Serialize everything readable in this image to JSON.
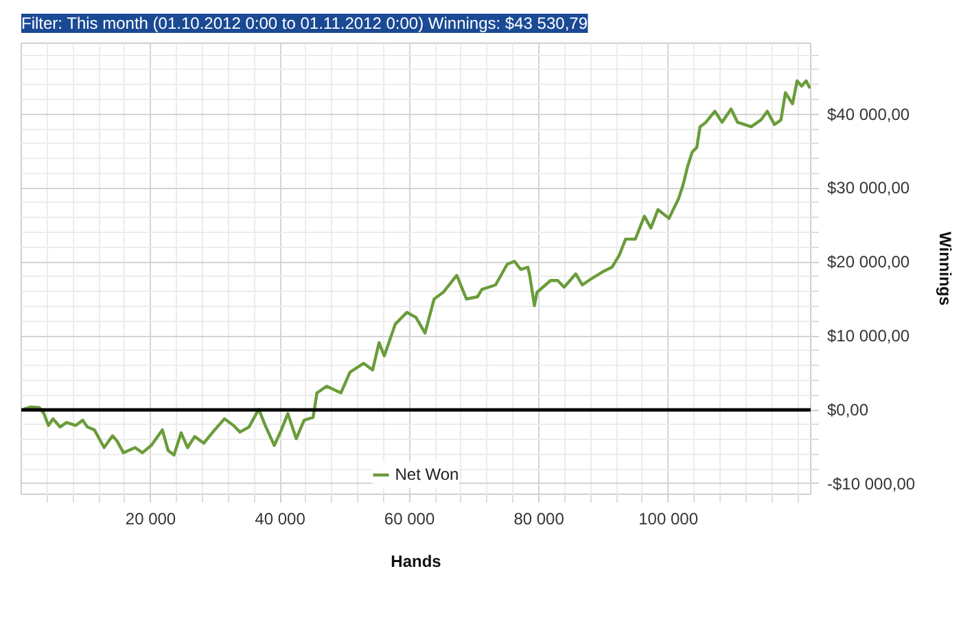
{
  "chart_data": {
    "type": "line",
    "title": "Filter: This month (01.10.2012 0:00 to 01.11.2012 0:00) Winnings: $43 530,79",
    "xlabel": "Hands",
    "ylabel": "Winnings",
    "xlim": [
      0,
      122000
    ],
    "ylim": [
      -11400,
      49600
    ],
    "xticks": [
      {
        "value": 4000,
        "label": null
      },
      {
        "value": 8000,
        "label": null
      },
      {
        "value": 12000,
        "label": null
      },
      {
        "value": 16000,
        "label": null
      },
      {
        "value": 20000,
        "label": "20 000"
      },
      {
        "value": 24000,
        "label": null
      },
      {
        "value": 28000,
        "label": null
      },
      {
        "value": 32000,
        "label": null
      },
      {
        "value": 36000,
        "label": null
      },
      {
        "value": 40000,
        "label": "40 000"
      },
      {
        "value": 44000,
        "label": null
      },
      {
        "value": 48000,
        "label": null
      },
      {
        "value": 52000,
        "label": null
      },
      {
        "value": 56000,
        "label": null
      },
      {
        "value": 60000,
        "label": "60 000"
      },
      {
        "value": 64000,
        "label": null
      },
      {
        "value": 68000,
        "label": null
      },
      {
        "value": 72000,
        "label": null
      },
      {
        "value": 76000,
        "label": null
      },
      {
        "value": 80000,
        "label": "80 000"
      },
      {
        "value": 84000,
        "label": null
      },
      {
        "value": 88000,
        "label": null
      },
      {
        "value": 92000,
        "label": null
      },
      {
        "value": 96000,
        "label": null
      },
      {
        "value": 100000,
        "label": "100 000"
      },
      {
        "value": 104000,
        "label": null
      },
      {
        "value": 108000,
        "label": null
      },
      {
        "value": 112000,
        "label": null
      },
      {
        "value": 116000,
        "label": null
      },
      {
        "value": 120000,
        "label": null
      }
    ],
    "yticks": [
      {
        "value": -10000,
        "label": "-$10 000,00"
      },
      {
        "value": -8000,
        "label": null
      },
      {
        "value": -6000,
        "label": null
      },
      {
        "value": -4000,
        "label": null
      },
      {
        "value": -2000,
        "label": null
      },
      {
        "value": 0,
        "label": "$0,00"
      },
      {
        "value": 2000,
        "label": null
      },
      {
        "value": 4000,
        "label": null
      },
      {
        "value": 6000,
        "label": null
      },
      {
        "value": 8000,
        "label": null
      },
      {
        "value": 10000,
        "label": "$10 000,00"
      },
      {
        "value": 12000,
        "label": null
      },
      {
        "value": 14000,
        "label": null
      },
      {
        "value": 16000,
        "label": null
      },
      {
        "value": 18000,
        "label": null
      },
      {
        "value": 20000,
        "label": "$20 000,00"
      },
      {
        "value": 22000,
        "label": null
      },
      {
        "value": 24000,
        "label": null
      },
      {
        "value": 26000,
        "label": null
      },
      {
        "value": 28000,
        "label": null
      },
      {
        "value": 30000,
        "label": "$30 000,00"
      },
      {
        "value": 32000,
        "label": null
      },
      {
        "value": 34000,
        "label": null
      },
      {
        "value": 36000,
        "label": null
      },
      {
        "value": 38000,
        "label": null
      },
      {
        "value": 40000,
        "label": "$40 000,00"
      },
      {
        "value": 42000,
        "label": null
      },
      {
        "value": 44000,
        "label": null
      },
      {
        "value": 46000,
        "label": null
      },
      {
        "value": 48000,
        "label": null
      }
    ],
    "grid": true,
    "legend": "bottom",
    "ref_lines": [
      {
        "axis": "y",
        "value": 0,
        "color": "#000000"
      }
    ],
    "series": [
      {
        "name": "Net Won",
        "color": "#6a9c3a",
        "x": [
          400,
          1400,
          2800,
          3500,
          4200,
          4900,
          6000,
          7000,
          8400,
          9500,
          10200,
          11300,
          12800,
          14100,
          14800,
          15800,
          17600,
          18700,
          20100,
          21800,
          22700,
          23600,
          24700,
          25700,
          26800,
          28200,
          29600,
          31400,
          32800,
          33800,
          35200,
          36700,
          37700,
          39100,
          40200,
          41200,
          42500,
          43700,
          45100,
          45700,
          47200,
          49400,
          50800,
          52900,
          54300,
          55300,
          56100,
          57800,
          59600,
          61000,
          62400,
          63800,
          65200,
          67300,
          68800,
          70500,
          71200,
          73300,
          75100,
          76200,
          77200,
          78300,
          78600,
          79300,
          79700,
          81800,
          82900,
          83900,
          85700,
          86700,
          88200,
          89900,
          91300,
          92400,
          93400,
          94900,
          96300,
          97300,
          98400,
          100100,
          101600,
          102300,
          103000,
          103700,
          104400,
          104900,
          105800,
          107200,
          108300,
          109700,
          110700,
          112800,
          114300,
          115300,
          116400,
          117400,
          118100,
          119200,
          119900,
          120600,
          121300,
          121900
        ],
        "values": [
          100,
          400,
          300,
          -500,
          -2100,
          -1200,
          -2300,
          -1700,
          -2100,
          -1400,
          -2300,
          -2700,
          -5100,
          -3500,
          -4200,
          -5800,
          -5100,
          -5800,
          -4800,
          -2700,
          -5500,
          -6100,
          -3100,
          -5100,
          -3600,
          -4500,
          -3000,
          -1200,
          -2100,
          -3000,
          -2300,
          100,
          -2100,
          -4800,
          -2700,
          -500,
          -3900,
          -1400,
          -1000,
          2300,
          3200,
          2300,
          5100,
          6300,
          5400,
          9100,
          7300,
          11600,
          13200,
          12500,
          10400,
          15000,
          15900,
          18200,
          15000,
          15300,
          16300,
          16900,
          19700,
          20100,
          19000,
          19300,
          18100,
          14100,
          15900,
          17500,
          17500,
          16600,
          18400,
          16900,
          17800,
          18700,
          19300,
          20900,
          23100,
          23100,
          26200,
          24600,
          27100,
          25900,
          28600,
          30500,
          33000,
          34900,
          35500,
          38300,
          38900,
          40400,
          38900,
          40700,
          38900,
          38300,
          39200,
          40400,
          38600,
          39200,
          42900,
          41400,
          44500,
          43800,
          44500,
          43500
        ]
      }
    ]
  }
}
